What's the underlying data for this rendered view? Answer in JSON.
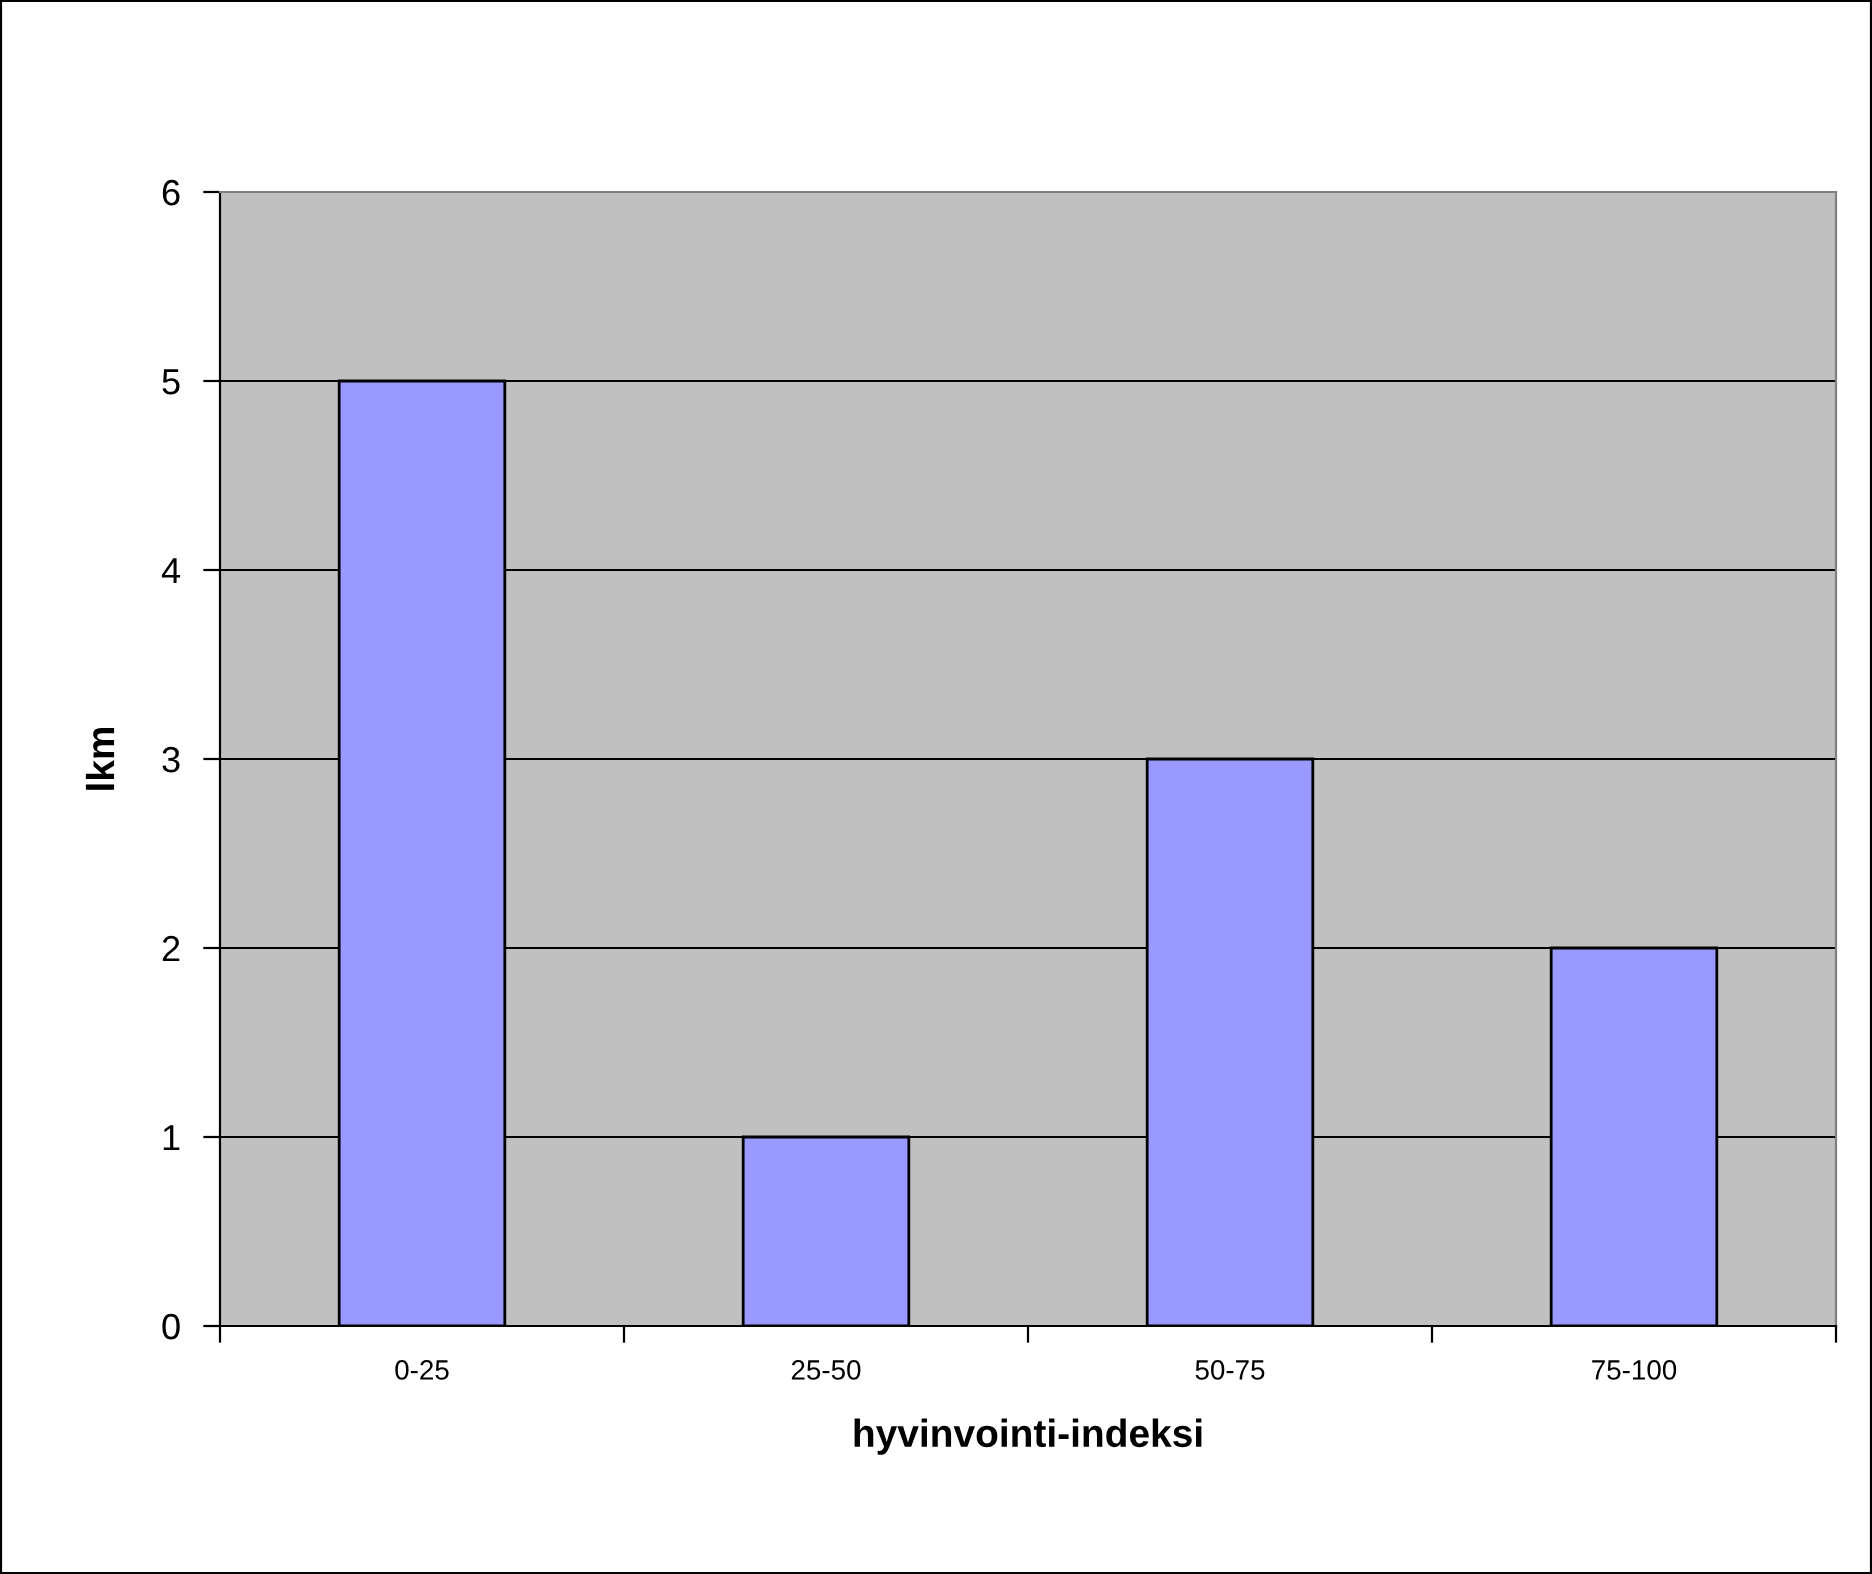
{
  "chart_data": {
    "type": "bar",
    "xlabel": "hyvinvointi-indeksi",
    "ylabel": "lkm",
    "categories": [
      "0-25",
      "25-50",
      "50-75",
      "75-100"
    ],
    "values": [
      5,
      1,
      3,
      2
    ],
    "color": "#9999ff",
    "ylim": [
      0,
      6
    ],
    "yticks": [
      0,
      1,
      2,
      3,
      4,
      5,
      6
    ],
    "grid": "y",
    "legend": false
  }
}
